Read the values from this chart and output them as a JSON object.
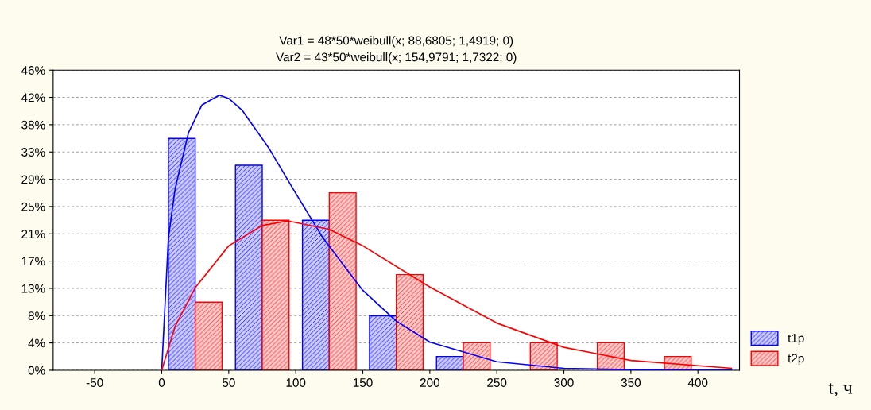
{
  "chart_data": {
    "type": "bar",
    "title": "Var1 = 48*50*weibull(x; 88,6805; 1,4919; 0)\nVar2 = 43*50*weibull(x; 154,9791; 1,7322; 0)",
    "xlabel": "t, ч",
    "series": [
      {
        "name": "t1p",
        "color": "#0000ff",
        "x": [
          15,
          65,
          115,
          165,
          215
        ],
        "values": [
          35.4,
          31.3,
          22.9,
          8.3,
          2.1
        ]
      },
      {
        "name": "t2p",
        "color": "#ff0000",
        "x": [
          35,
          85,
          135,
          185,
          235,
          285,
          335,
          385
        ],
        "values": [
          10.4,
          22.9,
          27.1,
          14.6,
          4.2,
          4.2,
          4.2,
          2.1
        ]
      },
      {
        "type": "line",
        "color": "#0000ff",
        "x": [
          0,
          5,
          10,
          20,
          30,
          43,
          50,
          60,
          80,
          100,
          120,
          150,
          175,
          200,
          250,
          300,
          350,
          425
        ],
        "values": [
          0,
          20.2,
          27.7,
          36.3,
          40.5,
          42.0,
          41.5,
          39.7,
          33.9,
          27.0,
          20.3,
          12.2,
          7.5,
          4.3,
          1.3,
          0.3,
          0.1,
          0
        ]
      },
      {
        "type": "line",
        "color": "#ff0000",
        "x": [
          0,
          10,
          25,
          50,
          75,
          94,
          125,
          150,
          200,
          250,
          300,
          350,
          425
        ],
        "values": [
          0,
          6.7,
          12.6,
          19.0,
          22.1,
          22.8,
          21.5,
          19.0,
          12.7,
          7.2,
          3.5,
          1.5,
          0.3
        ]
      }
    ],
    "xlim": [
      -81,
      431
    ],
    "xticks": [
      -50,
      0,
      50,
      100,
      150,
      200,
      250,
      300,
      350,
      400
    ],
    "ylim": [
      0,
      45.83
    ],
    "yticks": [
      {
        "value": 0,
        "label": "0%"
      },
      {
        "value": 4.17,
        "label": "4%"
      },
      {
        "value": 8.33,
        "label": "8%"
      },
      {
        "value": 12.5,
        "label": "13%"
      },
      {
        "value": 16.67,
        "label": "17%"
      },
      {
        "value": 20.83,
        "label": "21%"
      },
      {
        "value": 25,
        "label": "25%"
      },
      {
        "value": 29.17,
        "label": "29%"
      },
      {
        "value": 33.33,
        "label": "33%"
      },
      {
        "value": 37.5,
        "label": "38%"
      },
      {
        "value": 41.67,
        "label": "42%"
      },
      {
        "value": 45.83,
        "label": "46%"
      }
    ],
    "grid": "y",
    "legend": "bottom right",
    "marker": "none",
    "line_style": "solid"
  }
}
